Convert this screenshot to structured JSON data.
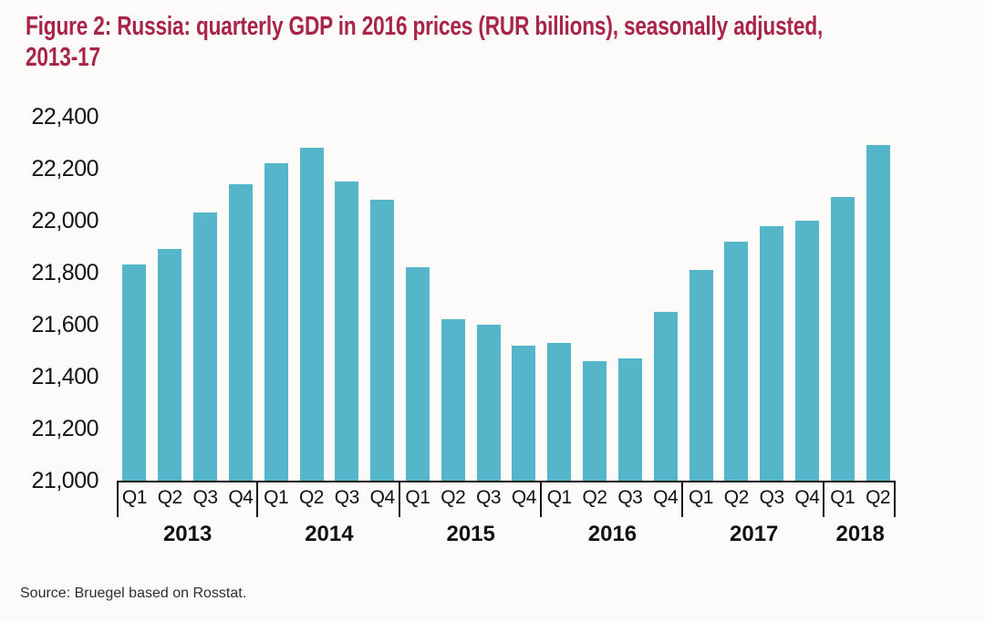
{
  "figure": {
    "title_line1": "Figure 2: Russia: quarterly GDP in 2016 prices (RUR billions), seasonally adjusted,",
    "title_line2": "2013-17",
    "source": "Source: Bruegel based on Rosstat."
  },
  "colors": {
    "title": "#a82448",
    "bar": "#55b6c9",
    "axis": "#121212",
    "background": "#fcfbfa"
  },
  "chart_data": {
    "type": "bar",
    "title": "Figure 2: Russia: quarterly GDP in 2016 prices (RUR billions), seasonally adjusted, 2013-17",
    "source": "Source: Bruegel based on Rosstat.",
    "xlabel": "",
    "ylabel": "",
    "ylim": [
      21000,
      22400
    ],
    "ytick_step": 200,
    "yticks": [
      22400,
      22200,
      22000,
      21800,
      21600,
      21400,
      21200,
      21000
    ],
    "grid": false,
    "legend": false,
    "groups": [
      {
        "year": "2013",
        "quarters": [
          "Q1",
          "Q2",
          "Q3",
          "Q4"
        ]
      },
      {
        "year": "2014",
        "quarters": [
          "Q1",
          "Q2",
          "Q3",
          "Q4"
        ]
      },
      {
        "year": "2015",
        "quarters": [
          "Q1",
          "Q2",
          "Q3",
          "Q4"
        ]
      },
      {
        "year": "2016",
        "quarters": [
          "Q1",
          "Q2",
          "Q3",
          "Q4"
        ]
      },
      {
        "year": "2017",
        "quarters": [
          "Q1",
          "Q2",
          "Q3",
          "Q4"
        ]
      },
      {
        "year": "2018",
        "quarters": [
          "Q1",
          "Q2"
        ]
      }
    ],
    "categories": [
      "2013 Q1",
      "2013 Q2",
      "2013 Q3",
      "2013 Q4",
      "2014 Q1",
      "2014 Q2",
      "2014 Q3",
      "2014 Q4",
      "2015 Q1",
      "2015 Q2",
      "2015 Q3",
      "2015 Q4",
      "2016 Q1",
      "2016 Q2",
      "2016 Q3",
      "2016 Q4",
      "2017 Q1",
      "2017 Q2",
      "2017 Q3",
      "2017 Q4",
      "2018 Q1",
      "2018 Q2"
    ],
    "values": [
      21830,
      21890,
      22030,
      22140,
      22220,
      22280,
      22150,
      22080,
      21820,
      21620,
      21600,
      21520,
      21530,
      21460,
      21470,
      21650,
      21810,
      21920,
      21980,
      22000,
      22090,
      22290
    ]
  }
}
